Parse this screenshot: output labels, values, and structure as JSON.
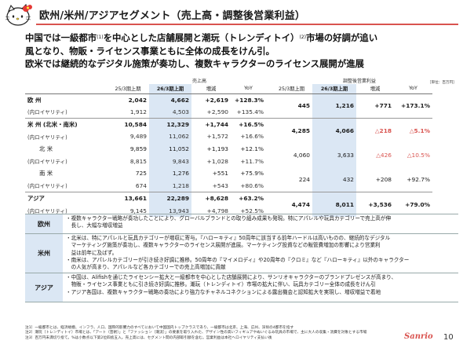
{
  "title": "欧州/米州/アジアセグメント（売上高・調整後営業利益）",
  "headline": {
    "line1_a": "中国では一級都市",
    "line1_note": "(1)",
    "line1_b": "を中心とした店舗展開と潮玩（トレンディトイ）",
    "line1_note2": "(2)",
    "line1_c": "市場の好調が追い",
    "line2": "風となり、物販・ライセンス事業ともに全体の成長をけん引。",
    "line3": "欧米では継続的なデジタル施策が奏功し、複数キャラクターのライセンス展開が進展"
  },
  "table": {
    "sales_label": "売上高",
    "op_label": "調整後営業利益",
    "unit": "［単位：百万円］",
    "headers": [
      "25/3期上期",
      "26/3期上期",
      "増減",
      "YoY",
      "25/3期上期",
      "26/3期上期",
      "増減",
      "YoY"
    ],
    "rows": [
      {
        "name": "欧 州",
        "a": "2,042",
        "b": "4,662",
        "d": "+2,619",
        "y": "+128.3%"
      },
      {
        "name": "(内ロイヤリティ)",
        "a": "1,912",
        "b": "4,503",
        "d": "+2,590",
        "y": "+135.4%"
      },
      {
        "name": "米 州 (北米・南米)",
        "a": "10,584",
        "b": "12,329",
        "d": "+1,744",
        "y": "+16.5%"
      },
      {
        "name": "(内ロイヤリティ)",
        "a": "9,489",
        "b": "11,062",
        "d": "+1,572",
        "y": "+16.6%"
      },
      {
        "name": "北 米",
        "a": "9,859",
        "b": "11,052",
        "d": "+1,193",
        "y": "+12.1%"
      },
      {
        "name": "(内ロイヤリティ)",
        "a": "8,815",
        "b": "9,843",
        "d": "+1,028",
        "y": "+11.7%"
      },
      {
        "name": "南 米",
        "a": "725",
        "b": "1,276",
        "d": "+551",
        "y": "+75.9%"
      },
      {
        "name": "(内ロイヤリティ)",
        "a": "674",
        "b": "1,218",
        "d": "+543",
        "y": "+80.6%"
      },
      {
        "name": "アジア",
        "a": "13,661",
        "b": "22,289",
        "d": "+8,628",
        "y": "+63.2%"
      },
      {
        "name": "(内ロイヤリティ)",
        "a": "9,145",
        "b": "13,943",
        "d": "+4,798",
        "y": "+52.5%"
      }
    ],
    "op": {
      "europe": {
        "a": "445",
        "b": "1,216",
        "d": "+771",
        "y": "+173.1%"
      },
      "americas": {
        "a": "4,285",
        "b": "4,066",
        "d": "△218",
        "y": "△5.1%"
      },
      "na": {
        "a": "4,060",
        "b": "3,633",
        "d": "△426",
        "y": "△10.5%"
      },
      "sa": {
        "a": "224",
        "b": "432",
        "d": "+208",
        "y": "+92.7%"
      },
      "asia": {
        "a": "4,474",
        "b": "8,011",
        "d": "+3,536",
        "y": "+79.0%"
      }
    }
  },
  "segments": [
    {
      "label": "欧州",
      "lines": [
        "・複数キャラクター戦略が奏功したことにより、グローバルブランドとの取り組み成果も発現。特にアパレルや玩具カテゴリーで売上高が伸",
        "　長し、大幅な増収増益"
      ]
    },
    {
      "label": "米州",
      "lines": [
        "・北米は、特にアパレルと玩具カテゴリーが増収に寄与。『ハローキティ』50周年に該当する前年ハードルは高いものの、継続的なデジタル",
        "　マーケティング施策が奏功し、複数キャラクターのライセンス展開が進展。マーケティング投資などの販管費増加の影響により営業利",
        "　益は前年に及ばず。",
        "・南米は、アパレルカテゴリーが引き続き好調に推移。50周年の『マイメロディ』や20周年の『クロミ』など『ハローキティ』以外のキャラクター",
        "　の人気が高まり、アパレルなど各カテゴリーでの売上高増加に貢献"
      ]
    },
    {
      "label": "アジア",
      "lines": [
        "・中国は、Alifishを通じたライセンシー拡大と一級都市を中心とした店舗展開により、サンリオキャラクターのブランドプレゼンスが高まり、",
        "　物販・ライセンス事業ともに引き続き好調に推移。潮玩（トレンディトイ）市場の拡大に伴い、玩具カテゴリー全体の成長をけん引",
        "・アジア各国は、複数キャラクター戦略の奏功により強力なチャネルコネクションによる露出機会と認知拡大を実現し、増収増益で着地"
      ]
    }
  ],
  "notes": [
    "注1）一級都市とは、経済規模、インフラ、人口、国際的影響力のすべてにおいて中国国内トップクラスであり、一級都市は北京、上海、広州、深圳の4都市を指す",
    "注2）潮玩（トレンディトイ）市場とは、「アート（芸術）」と「ファッション（潮流）」の要素を取り入れた、デザイン性の高いフィギュアやぬいぐるみ玩具の市場で、主に大人の収集・消費を対象とする市場",
    "注3）百万円未満切り捨て。%は小数点以下第2位四捨五入。売上高には、セグメント間の内部取引額を含む。営業利益は本社ヘロイヤリティ支払い後"
  ],
  "logo_text": "Sanrio",
  "page_number": "10",
  "colors": {
    "accent": "#d9534f",
    "highlight": "#dbe7f4",
    "negative": "#d9534f"
  }
}
